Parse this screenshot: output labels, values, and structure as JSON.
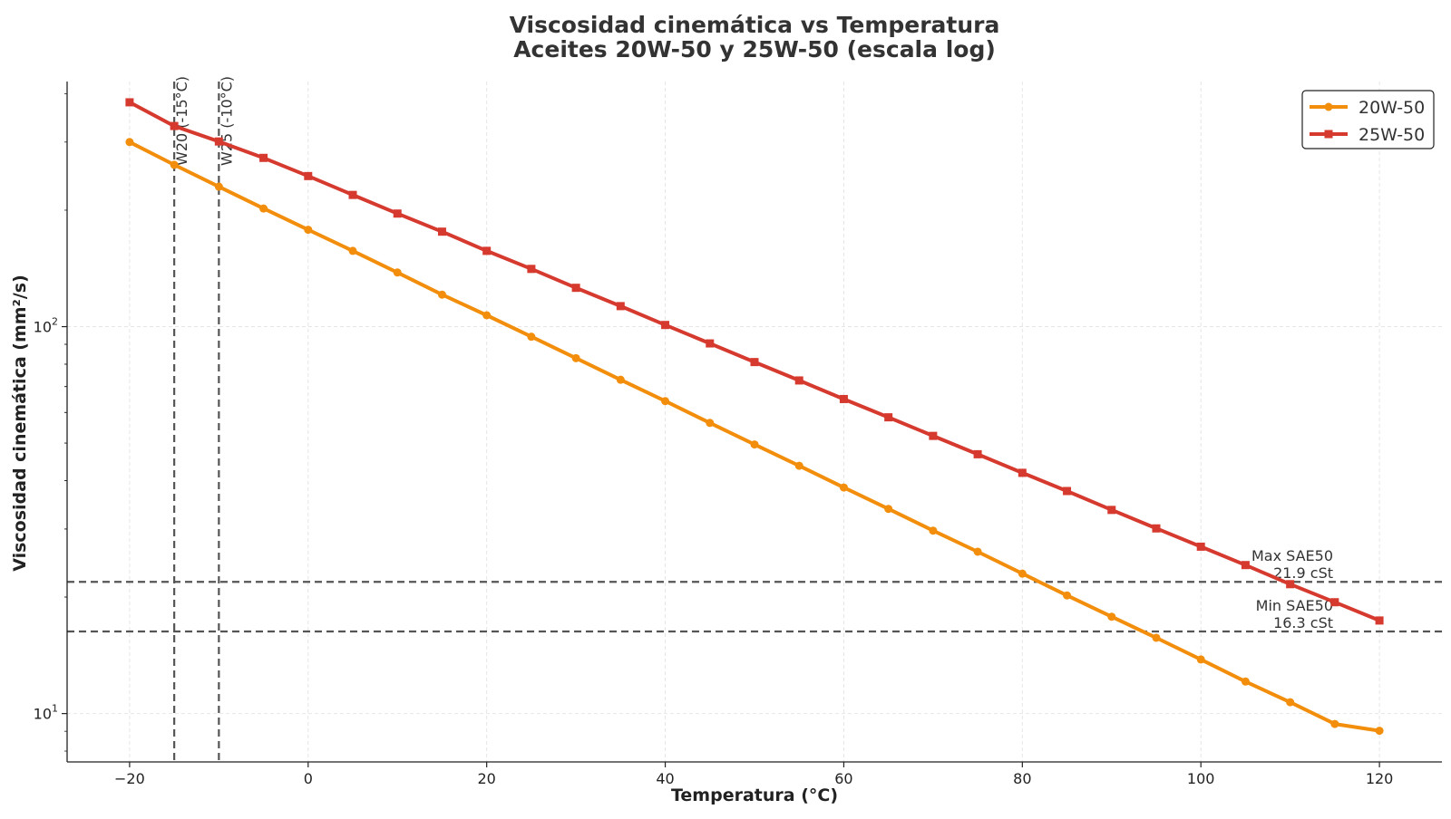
{
  "chart_data": {
    "type": "line",
    "title": "Viscosidad cinemática vs Temperatura",
    "subtitle": "Aceites 20W-50 y 25W-50 (escala log)",
    "xlabel": "Temperatura (°C)",
    "ylabel": "Viscosidad cinemática (mm²/s)",
    "y_scale": "log",
    "xlim": [
      -27,
      127
    ],
    "ylim": [
      7.5,
      430
    ],
    "x_ticks": [
      -20,
      0,
      20,
      40,
      60,
      80,
      100,
      120
    ],
    "x_tick_labels": [
      "−20",
      "0",
      "20",
      "40",
      "60",
      "80",
      "100",
      "120"
    ],
    "y_ticks": [
      10,
      100
    ],
    "y_tick_labels": [
      {
        "base": "10",
        "exp": "1"
      },
      {
        "base": "10",
        "exp": "2"
      }
    ],
    "grid": true,
    "legend_position": "top-right",
    "x": [
      -20,
      -15,
      -10,
      -5,
      0,
      5,
      10,
      15,
      20,
      25,
      30,
      35,
      40,
      45,
      50,
      55,
      60,
      65,
      70,
      75,
      80,
      85,
      90,
      95,
      100,
      105,
      110,
      115,
      120
    ],
    "series": [
      {
        "name": "20W-50",
        "color": "#f28e0b",
        "marker": "circle",
        "values": [
          300,
          262,
          230,
          202,
          178,
          157,
          138,
          121,
          107,
          94.2,
          82.9,
          72.9,
          64.2,
          56.4,
          49.6,
          43.7,
          38.4,
          33.8,
          29.7,
          26.2,
          23.0,
          20.2,
          17.8,
          15.7,
          13.8,
          12.1,
          10.7,
          9.4,
          9.03
        ]
      },
      {
        "name": "25W-50",
        "color": "#d63a2f",
        "marker": "square",
        "values": [
          380,
          330,
          301,
          273,
          245,
          219,
          196,
          176,
          157,
          141,
          126,
          113,
          101,
          90.5,
          81.0,
          72.6,
          65.0,
          58.3,
          52.2,
          46.8,
          41.9,
          37.6,
          33.6,
          30.1,
          27.0,
          24.2,
          21.6,
          19.4,
          17.4
        ]
      }
    ],
    "reference_lines": [
      {
        "orientation": "vertical",
        "x": -15,
        "label": "W20 (-15°C)"
      },
      {
        "orientation": "vertical",
        "x": -10,
        "label": "W25 (-10°C)"
      },
      {
        "orientation": "horizontal",
        "y": 21.9,
        "label_line1": "Max SAE50",
        "label_line2": "21.9 cSt"
      },
      {
        "orientation": "horizontal",
        "y": 16.3,
        "label_line1": "Min SAE50",
        "label_line2": "16.3 cSt"
      }
    ]
  }
}
